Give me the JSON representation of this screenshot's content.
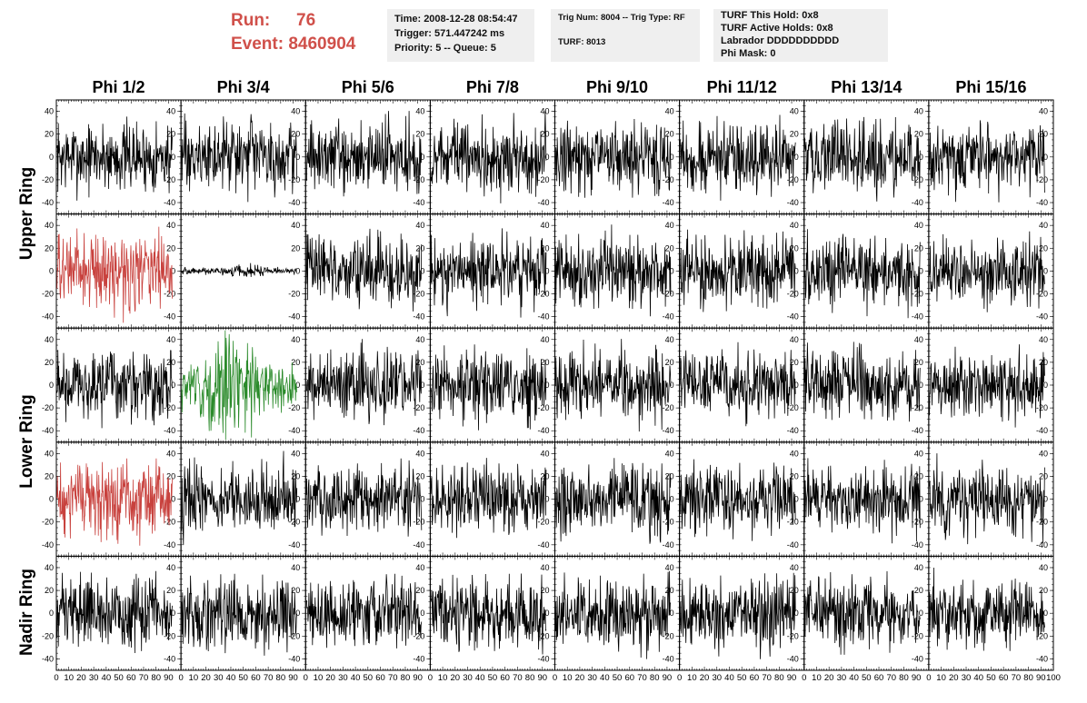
{
  "header": {
    "run_label": "Run:",
    "run_value": "76",
    "event_label": "Event:",
    "event_value": "8460904",
    "time": "Time: 2008-12-28 08:54:47",
    "trigger": "Trigger: 571.447242 ms",
    "priority": "Priority: 5 -- Queue: 5",
    "trig_num": "Trig Num: 8004 -- Trig Type: RF",
    "turf": "TURF: 8013",
    "turf_this_hold": "TURF This Hold: 0x8",
    "turf_active_holds": "TURF Active Holds: 0x8",
    "labrador": "Labrador DDDDDDDDDD",
    "phi_mask": "Phi Mask: 0"
  },
  "chart_data": {
    "type": "line",
    "columns": [
      "Phi 1/2",
      "Phi 3/4",
      "Phi 5/6",
      "Phi 7/8",
      "Phi 9/10",
      "Phi 11/12",
      "Phi 13/14",
      "Phi 15/16"
    ],
    "rows": 5,
    "ring_labels": [
      {
        "label": "Upper Ring",
        "rows": [
          0,
          1
        ]
      },
      {
        "label": "Lower Ring",
        "rows": [
          2,
          3
        ]
      },
      {
        "label": "Nadir Ring",
        "rows": [
          4,
          4
        ]
      }
    ],
    "xlim": [
      0,
      100
    ],
    "ylim": [
      -50,
      50
    ],
    "x_ticks": [
      "0",
      "10",
      "20",
      "30",
      "40",
      "50",
      "60",
      "70",
      "80",
      "90",
      "100"
    ],
    "y_ticks": [
      "40",
      "20",
      "0",
      "-20",
      "-40"
    ],
    "colors": {
      "default": "#000000",
      "red": "#c8413d",
      "green": "#2a8a2a"
    },
    "highlight": [
      {
        "row": 1,
        "col": 0,
        "color": "red",
        "amplitude": 16
      },
      {
        "row": 3,
        "col": 0,
        "color": "red",
        "amplitude": 16
      },
      {
        "row": 2,
        "col": 1,
        "color": "green",
        "amplitude": 16
      },
      {
        "row": 1,
        "col": 1,
        "color": "default",
        "amplitude": 1.5
      }
    ],
    "default_amplitude": 15,
    "samples_per_trace": 260
  }
}
